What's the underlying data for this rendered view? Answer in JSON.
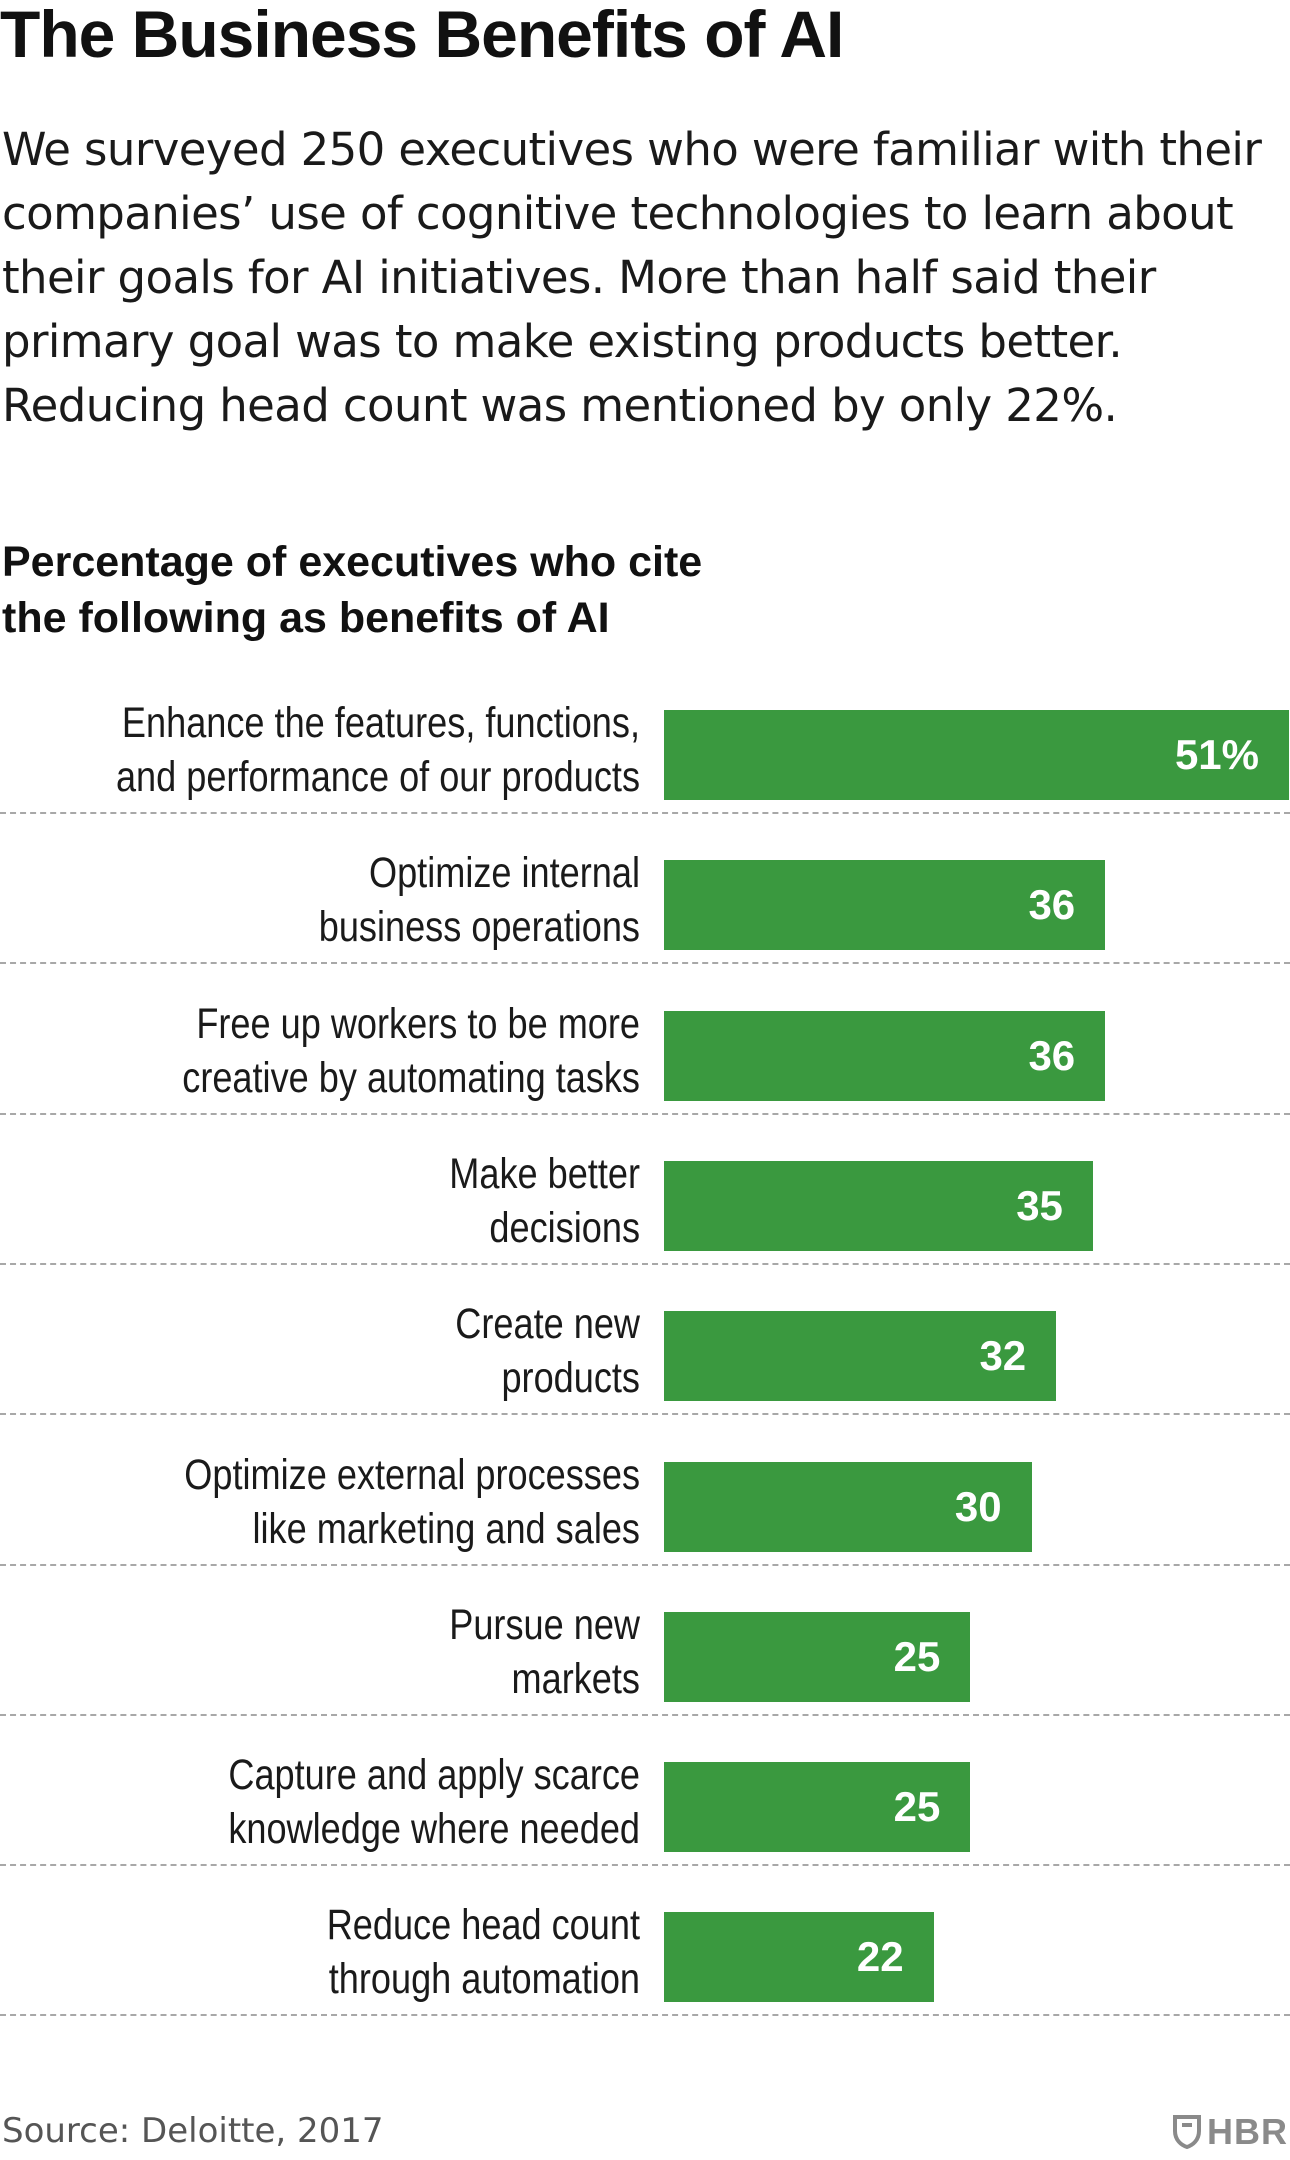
{
  "title": "The Business Benefits of AI",
  "description": "We surveyed 250 executives who were familiar with their companies’ use of cognitive technologies to learn about their goals for AI initiatives. More than half said their primary goal was to make existing products better. Reducing head count was mentioned by only 22%.",
  "source": "Source: Deloitte, 2017",
  "logo": {
    "text": "HBR",
    "icon": "hbr-shield-icon"
  },
  "colors": {
    "bar": "#3a993f",
    "bar_text": "#ffffff",
    "divider": "#a8a8a8",
    "logo": "#8a8a8a"
  },
  "chart_data": {
    "type": "bar",
    "orientation": "horizontal",
    "title": "Percentage of executives who cite\nthe following as benefits of AI",
    "categories": [
      "Enhance the features, functions,\nand performance of our products",
      "Optimize internal\nbusiness operations",
      "Free up workers to be more\ncreative by automating tasks",
      "Make better\ndecisions",
      "Create new\nproducts",
      "Optimize external processes\nlike marketing and sales",
      "Pursue new\nmarkets",
      "Capture and apply scarce\nknowledge where needed",
      "Reduce head count\nthrough automation"
    ],
    "values": [
      51,
      36,
      36,
      35,
      32,
      30,
      25,
      25,
      22
    ],
    "value_labels": [
      "51%",
      "36",
      "36",
      "35",
      "32",
      "30",
      "25",
      "25",
      "22"
    ],
    "xlim": [
      0,
      51
    ],
    "grid": false,
    "legend": "none"
  }
}
